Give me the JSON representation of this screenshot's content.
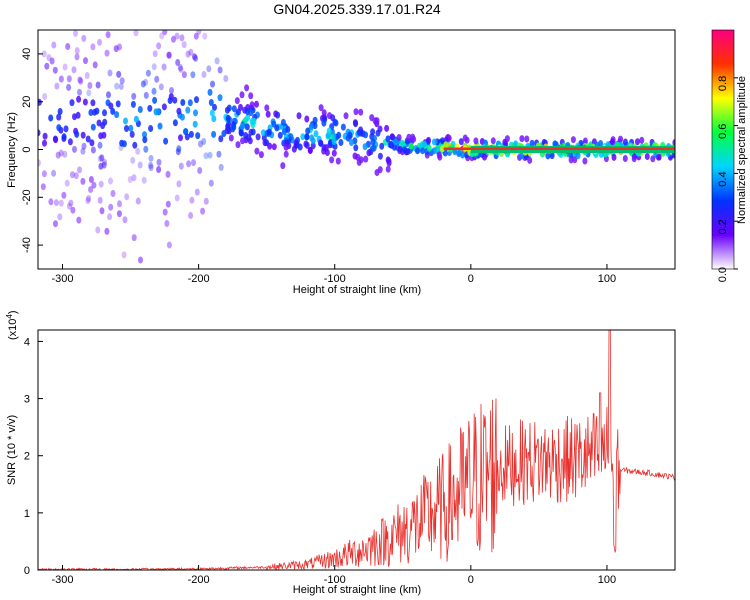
{
  "title": "GN04.2025.339.17.01.R24",
  "colors": {
    "snr_line": "#e8302c",
    "spectrogram_ridge": "#e8302c",
    "frame": "#000000"
  },
  "chart_data": [
    {
      "type": "heatmap",
      "xlabel": "Height of straight line (km)",
      "ylabel": "Frequency (Hz)",
      "xlim": [
        -318,
        150
      ],
      "ylim": [
        -50,
        50
      ],
      "xticks": [
        "-300",
        "-200",
        "-100",
        "0",
        "100"
      ],
      "yticks": [
        "-40",
        "-20",
        "0",
        "20",
        "40"
      ],
      "colorbar": {
        "label": "Normalized spectral amplitude",
        "range": [
          0,
          1
        ],
        "ticks": [
          "0.0",
          "0.2",
          "0.4",
          "0.6",
          "0.8"
        ],
        "colormap": [
          "#ffffff",
          "#6a00ff",
          "#0033ff",
          "#00d5ff",
          "#00ff40",
          "#ffff00",
          "#ff3000",
          "#ff0080"
        ]
      },
      "ridge": {
        "x": [
          -318,
          -300,
          -280,
          -260,
          -240,
          -220,
          -200,
          -180,
          -160,
          -140,
          -120,
          -100,
          -80,
          -60,
          -40,
          -20,
          0,
          20,
          40,
          60,
          80,
          100,
          120,
          150
        ],
        "freq": [
          10,
          11,
          12,
          12,
          11,
          13,
          15,
          14,
          11,
          8,
          7,
          6,
          4,
          3,
          1,
          1,
          0,
          0,
          0,
          0,
          0,
          0,
          0,
          0
        ],
        "amplitude": [
          0.3,
          0.3,
          0.3,
          0.35,
          0.4,
          0.35,
          0.4,
          0.45,
          0.5,
          0.5,
          0.5,
          0.5,
          0.45,
          0.45,
          0.6,
          0.9,
          0.95,
          0.95,
          0.95,
          0.95,
          0.95,
          0.95,
          0.95,
          0.95
        ]
      }
    },
    {
      "type": "line",
      "xlabel": "Height of straight line (km)",
      "ylabel": "SNR (10 * v/v)",
      "yscale_label": "(x10",
      "yscale_exp": "4",
      "xlim": [
        -318,
        150
      ],
      "ylim": [
        0,
        4.2
      ],
      "xticks": [
        "-300",
        "-200",
        "-100",
        "0",
        "100"
      ],
      "yticks": [
        "0",
        "1",
        "2",
        "3",
        "4"
      ],
      "series": [
        {
          "x": [
            -318,
            -250,
            -200,
            -150,
            -120,
            -100,
            -80,
            -60,
            -40,
            -20,
            0,
            20,
            40,
            60,
            80,
            90,
            100,
            105,
            110,
            130,
            150
          ],
          "y": [
            0.01,
            0.01,
            0.02,
            0.05,
            0.1,
            0.2,
            0.35,
            0.55,
            0.8,
            1.1,
            1.5,
            1.8,
            1.9,
            1.9,
            1.95,
            2.0,
            2.1,
            1.8,
            1.75,
            1.7,
            1.62
          ],
          "peaks": [
            [
              95,
              3.1
            ],
            [
              102,
              4.2
            ],
            [
              106,
              4.0
            ]
          ]
        }
      ]
    }
  ]
}
